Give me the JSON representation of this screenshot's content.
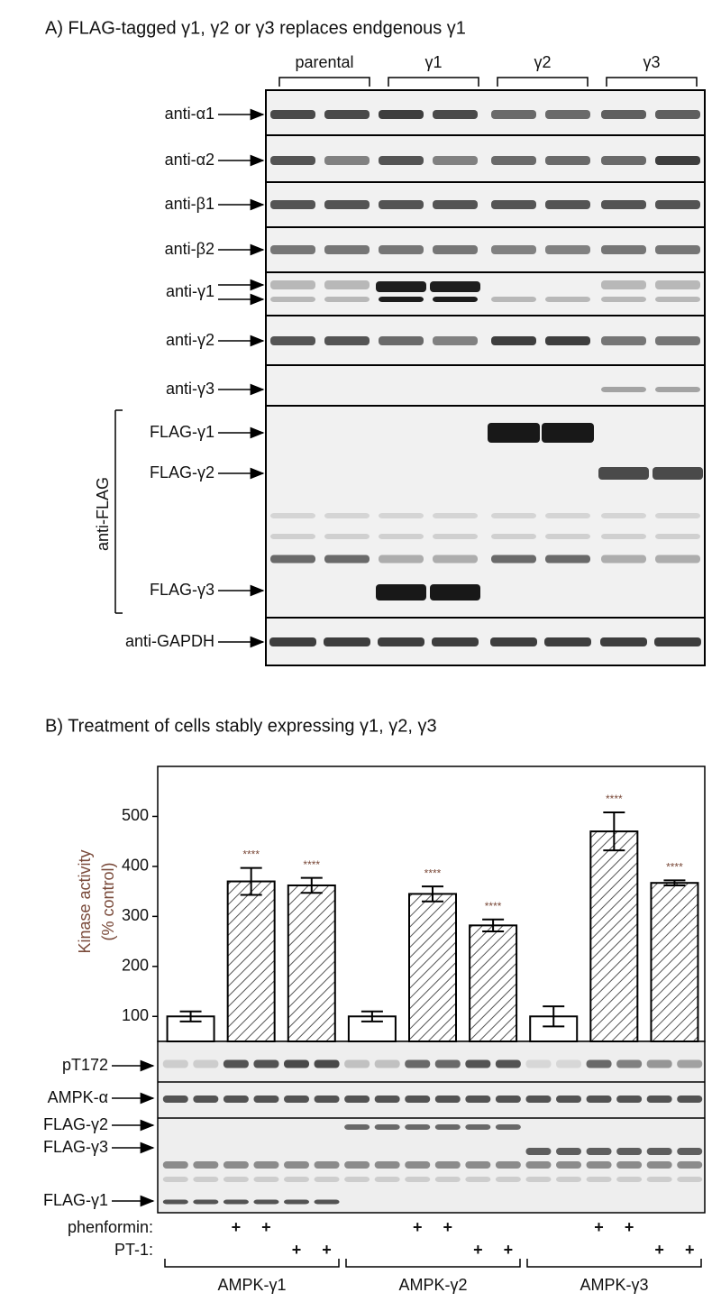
{
  "panel_a": {
    "title": "A) FLAG-tagged γ1, γ2 or γ3 replaces endgenous γ1",
    "groups": [
      "parental",
      "γ1",
      "γ2",
      "γ3"
    ],
    "rows": [
      "anti-α1",
      "anti-α2",
      "anti-β1",
      "anti-β2",
      "anti-γ1",
      "anti-γ2",
      "anti-γ3"
    ],
    "flag_group": "anti-FLAG",
    "flag_rows": [
      "FLAG-γ1",
      "FLAG-γ2",
      "FLAG-γ3"
    ],
    "loading": "anti-GAPDH"
  },
  "panel_b": {
    "title": "B) Treatment of cells stably expressing γ1, γ2, γ3",
    "blot_rows": [
      "pT172",
      "AMPK-α"
    ],
    "flag_rows": [
      "FLAG-γ2",
      "FLAG-γ3",
      "FLAG-γ1"
    ],
    "treatments": [
      {
        "label": "phenformin:",
        "marks": [
          null,
          null,
          "+",
          "+",
          null,
          null,
          null,
          null,
          "+",
          "+",
          null,
          null,
          null,
          null,
          "+",
          "+",
          null,
          null
        ]
      },
      {
        "label": "PT-1:",
        "marks": [
          null,
          null,
          null,
          null,
          "+",
          "+",
          null,
          null,
          null,
          null,
          "+",
          "+",
          null,
          null,
          null,
          null,
          "+",
          "+"
        ]
      }
    ],
    "groups": [
      "AMPK-γ1",
      "AMPK-γ2",
      "AMPK-γ3"
    ]
  },
  "chart_data": {
    "type": "bar",
    "ylabel": [
      "Kinase activity",
      "(% control)"
    ],
    "categories": [
      null,
      null,
      null,
      null,
      null,
      null,
      null,
      null,
      null
    ],
    "values": [
      100,
      370,
      362,
      100,
      345,
      282,
      100,
      470,
      367
    ],
    "errors": [
      10,
      27,
      15,
      10,
      15,
      12,
      20,
      38,
      5
    ],
    "annotations": [
      null,
      "****",
      "****",
      null,
      "****",
      "****",
      null,
      "****",
      "****"
    ],
    "hatched": [
      false,
      true,
      true,
      false,
      true,
      true,
      false,
      true,
      true
    ],
    "ylim": [
      50,
      600
    ],
    "yticks": [
      100,
      200,
      300,
      400,
      500
    ]
  }
}
